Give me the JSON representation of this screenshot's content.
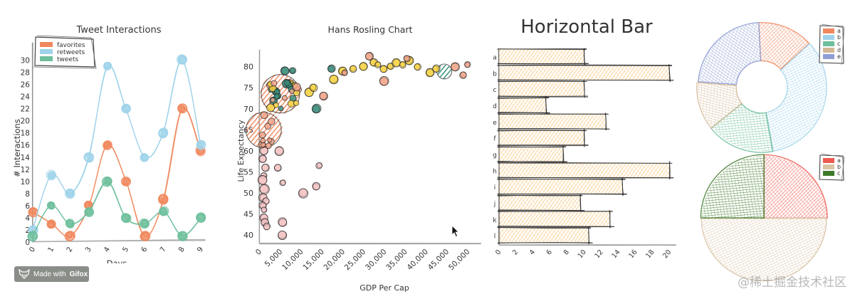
{
  "chart_data": [
    {
      "type": "line",
      "title": "Tweet Interactions",
      "xlabel": "Days",
      "ylabel": "# Interactions",
      "x": [
        0,
        1,
        2,
        3,
        4,
        5,
        6,
        7,
        8,
        9
      ],
      "ylim": [
        0,
        31
      ],
      "yticks": [
        0,
        2,
        4,
        6,
        8,
        10,
        12,
        14,
        16,
        18,
        20,
        22,
        24,
        26,
        28,
        30
      ],
      "legend_position": "top-left",
      "series": [
        {
          "name": "favorites",
          "color": "#f0885e",
          "values": [
            5,
            3,
            1,
            6,
            16,
            10,
            1,
            7,
            22,
            15
          ]
        },
        {
          "name": "retweets",
          "color": "#9fd3ea",
          "values": [
            2,
            11,
            8,
            14,
            29,
            22,
            14,
            18,
            30,
            16
          ]
        },
        {
          "name": "tweets",
          "color": "#6ebf9c",
          "values": [
            1,
            6,
            3,
            5,
            10,
            4,
            3,
            5,
            1,
            4
          ]
        }
      ]
    },
    {
      "type": "scatter",
      "title": "Hans Rosling Chart",
      "xlabel": "GDP Per Cap",
      "ylabel": "Life Expectancy",
      "xlim": [
        0,
        52000
      ],
      "ylim": [
        38,
        84
      ],
      "xticks": [
        "0",
        "5,000",
        "10,000",
        "15,000",
        "20,000",
        "25,000",
        "30,000",
        "35,000",
        "40,000",
        "45,000",
        "50,000"
      ],
      "yticks": [
        40,
        45,
        50,
        55,
        60,
        65,
        70,
        75,
        80
      ],
      "series": [
        {
          "name": "large-bubbles",
          "color": "#f0885e",
          "points": [
            [
              5000,
              73.5,
              28
            ],
            [
              1200,
              65,
              26
            ]
          ]
        },
        {
          "name": "large-green",
          "color": "#2e8b74",
          "points": [
            [
              44500,
              78.8,
              10
            ]
          ]
        },
        {
          "name": "africa-cluster",
          "color": "#f4c2c2",
          "points": [
            [
              1200,
              60
            ],
            [
              900,
              58
            ],
            [
              1500,
              56
            ],
            [
              1100,
              54
            ],
            [
              800,
              53
            ],
            [
              1300,
              51
            ],
            [
              1000,
              49
            ],
            [
              1600,
              48
            ],
            [
              900,
              47
            ],
            [
              1200,
              46
            ],
            [
              1100,
              44
            ],
            [
              1300,
              43
            ],
            [
              1800,
              42
            ],
            [
              5600,
              43
            ],
            [
              5600,
              40
            ],
            [
              4400,
              56
            ],
            [
              5700,
              52.5
            ],
            [
              10500,
              50
            ],
            [
              13600,
              51.5
            ],
            [
              14500,
              56.5
            ],
            [
              4900,
              60
            ]
          ]
        },
        {
          "name": "asia-europe",
          "color": "#f5d142",
          "points": [
            [
              7500,
              76
            ],
            [
              8500,
              75.5
            ],
            [
              12000,
              74
            ],
            [
              13000,
              75
            ],
            [
              18000,
              77
            ],
            [
              20000,
              79
            ],
            [
              22500,
              79.5
            ],
            [
              25000,
              80
            ],
            [
              27500,
              81
            ],
            [
              28500,
              80.5
            ],
            [
              30000,
              79.5
            ],
            [
              31500,
              80
            ],
            [
              33000,
              81
            ],
            [
              34500,
              80.5
            ],
            [
              36000,
              81.5
            ],
            [
              38000,
              80
            ],
            [
              41000,
              78.5
            ],
            [
              42500,
              79.5
            ]
          ]
        },
        {
          "name": "americas-mixed",
          "color": "#3a8c7a",
          "points": [
            [
              6200,
              79
            ],
            [
              8000,
              79
            ],
            [
              6600,
              76
            ],
            [
              7200,
              75.5
            ],
            [
              4000,
              74
            ],
            [
              4500,
              73
            ],
            [
              3500,
              72
            ],
            [
              13700,
              70
            ],
            [
              17300,
              79.5
            ]
          ]
        },
        {
          "name": "misc-salmon",
          "color": "#f0a48a",
          "points": [
            [
              15500,
              73
            ],
            [
              20500,
              78.5
            ],
            [
              26500,
              82.5
            ],
            [
              30000,
              76.5
            ],
            [
              35500,
              82
            ],
            [
              47000,
              80
            ],
            [
              50000,
              80.5
            ],
            [
              49000,
              78
            ]
          ]
        }
      ]
    },
    {
      "type": "bar",
      "orientation": "horizontal",
      "title": "Horizontal Bar",
      "categories": [
        "a",
        "b",
        "c",
        "d",
        "e",
        "f",
        "g",
        "h",
        "i",
        "j",
        "k",
        "l"
      ],
      "values": [
        10,
        20,
        10,
        5.5,
        12.5,
        10,
        7.5,
        20,
        14.5,
        9.5,
        13,
        10.5
      ],
      "color": "#f5b04a",
      "xlim": [
        0,
        20
      ],
      "xticks": [
        0,
        2,
        4,
        6,
        8,
        10,
        12,
        14,
        16,
        18,
        20
      ]
    },
    {
      "type": "pie",
      "variant": "donut",
      "categories": [
        "a",
        "b",
        "c",
        "d",
        "e"
      ],
      "colors": [
        "#f0885e",
        "#9fd3ea",
        "#6ebf9c",
        "#d4b896",
        "#8e9fd4"
      ],
      "values": [
        14,
        34,
        17,
        12,
        23
      ],
      "legend_position": "top-right"
    },
    {
      "type": "pie",
      "categories": [
        "a",
        "b",
        "c"
      ],
      "colors": [
        "#ee5a50",
        "#d9c4a6",
        "#3f7a2a"
      ],
      "values": [
        25,
        50,
        25
      ],
      "legend_position": "top-right"
    }
  ],
  "charts": {
    "line": {
      "title": "Tweet Interactions",
      "xlabel": "Days",
      "ylabel": "# Interactions",
      "legend": [
        "favorites",
        "retweets",
        "tweets"
      ]
    },
    "scatter": {
      "title": "Hans Rosling Chart",
      "xlabel": "GDP Per Cap",
      "ylabel": "Life Expectancy"
    },
    "hbar": {
      "title": "Horizontal Bar"
    },
    "donut": {
      "legend": [
        "a",
        "b",
        "c",
        "d",
        "e"
      ]
    },
    "pie": {
      "legend": [
        "a",
        "b",
        "c"
      ]
    }
  },
  "badge": {
    "prefix": "Made with",
    "brand": "Gifox"
  },
  "watermark": "@稀土掘金技术社区"
}
